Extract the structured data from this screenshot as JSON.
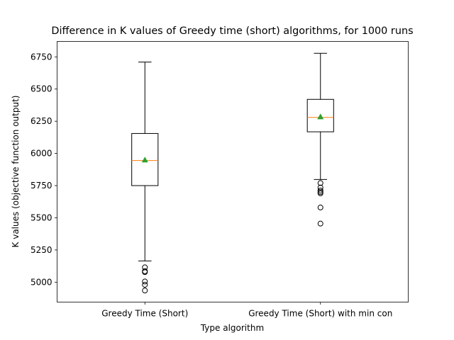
{
  "chart_data": {
    "type": "box",
    "title": "Difference in K values of Greedy time (short) algorithms, for 1000 runs",
    "xlabel": "Type algorithm",
    "ylabel": "K values (objective function output)",
    "categories": [
      "Greedy Time (Short)",
      "Greedy Time (Short) with min con"
    ],
    "ylim": [
      4845,
      6870
    ],
    "yticks": [
      5000,
      5250,
      5500,
      5750,
      6000,
      6250,
      6500,
      6750
    ],
    "grid": false,
    "boxes": [
      {
        "category": "Greedy Time (Short)",
        "whisker_low": 5165,
        "q1": 5750,
        "median": 5945,
        "mean": 5950,
        "q3": 6155,
        "whisker_high": 6710,
        "outliers": [
          5115,
          5085,
          5078,
          5005,
          4980,
          4935
        ]
      },
      {
        "category": "Greedy Time (Short) with min con",
        "whisker_low": 5798,
        "q1": 6168,
        "median": 6280,
        "mean": 6285,
        "q3": 6420,
        "whisker_high": 6778,
        "outliers": [
          5770,
          5735,
          5712,
          5700,
          5690,
          5580,
          5455
        ]
      }
    ],
    "colors": {
      "box": "#000000",
      "median": "#ff7f0e",
      "mean": "#2ca02c",
      "outlier": "#000000"
    }
  }
}
